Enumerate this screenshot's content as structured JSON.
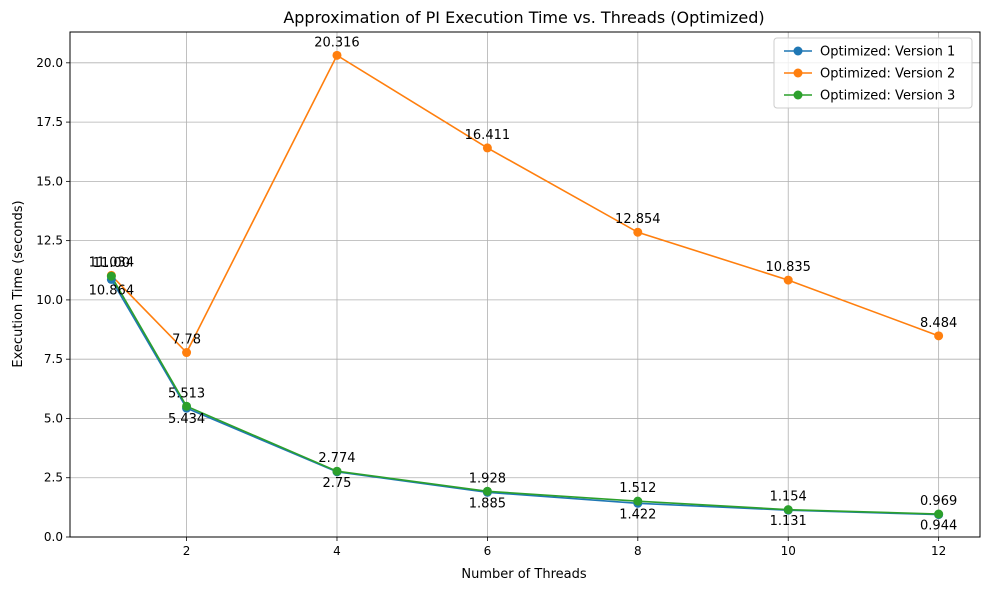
{
  "chart_data": {
    "type": "line",
    "title": "Approximation of PI Execution Time vs. Threads (Optimized)",
    "xlabel": "Number of Threads",
    "ylabel": "Execution Time (seconds)",
    "x": [
      1,
      2,
      4,
      6,
      8,
      10,
      12
    ],
    "xlim": [
      0.45,
      12.55
    ],
    "ylim": [
      0,
      21.3
    ],
    "xticks": [
      2,
      4,
      6,
      8,
      10,
      12
    ],
    "yticks": [
      0.0,
      2.5,
      5.0,
      7.5,
      10.0,
      12.5,
      15.0,
      17.5,
      20.0
    ],
    "ytick_labels": [
      "0.0",
      "2.5",
      "5.0",
      "7.5",
      "10.0",
      "12.5",
      "15.0",
      "17.5",
      "20.0"
    ],
    "grid": true,
    "legend_position": "top-right",
    "series": [
      {
        "name": "Optimized: Version 1",
        "color": "#1f77b4",
        "values": [
          10.864,
          5.434,
          2.75,
          1.885,
          1.422,
          1.131,
          0.944
        ],
        "label_side": "below",
        "labels": [
          "10.864",
          "5.434",
          "2.75",
          "1.885",
          "1.422",
          "1.131",
          "0.944"
        ]
      },
      {
        "name": "Optimized: Version 2",
        "color": "#ff7f0e",
        "values": [
          11.034,
          7.78,
          20.316,
          16.411,
          12.854,
          10.835,
          8.484
        ],
        "label_side": "above",
        "labels": [
          "11.034",
          "7.78",
          "20.316",
          "16.411",
          "12.854",
          "10.835",
          "8.484"
        ]
      },
      {
        "name": "Optimized: Version 3",
        "color": "#2ca02c",
        "values": [
          11.0,
          5.513,
          2.774,
          1.928,
          1.512,
          1.154,
          0.969
        ],
        "label_side": "above",
        "labels": [
          "11.00",
          "5.513",
          "2.774",
          "1.928",
          "1.512",
          "1.154",
          "0.969"
        ]
      }
    ]
  }
}
